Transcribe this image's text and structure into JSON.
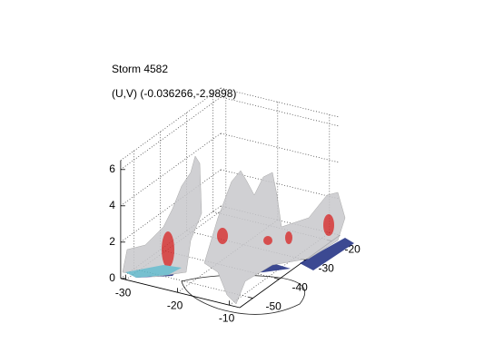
{
  "chart_data": {
    "type": "isosurface3d",
    "title": "Storm 4582",
    "subtitle": "(U,V) (-0.036266,-2.9898)",
    "xlim": [
      -31,
      -8
    ],
    "xticks": [
      -30,
      -20,
      -10
    ],
    "ylim": [
      -55,
      -17
    ],
    "yticks": [
      -50,
      -40,
      -30,
      -20
    ],
    "zlim": [
      0,
      6.5
    ],
    "zticks": [
      0,
      2,
      4,
      6
    ],
    "grid": true
  }
}
